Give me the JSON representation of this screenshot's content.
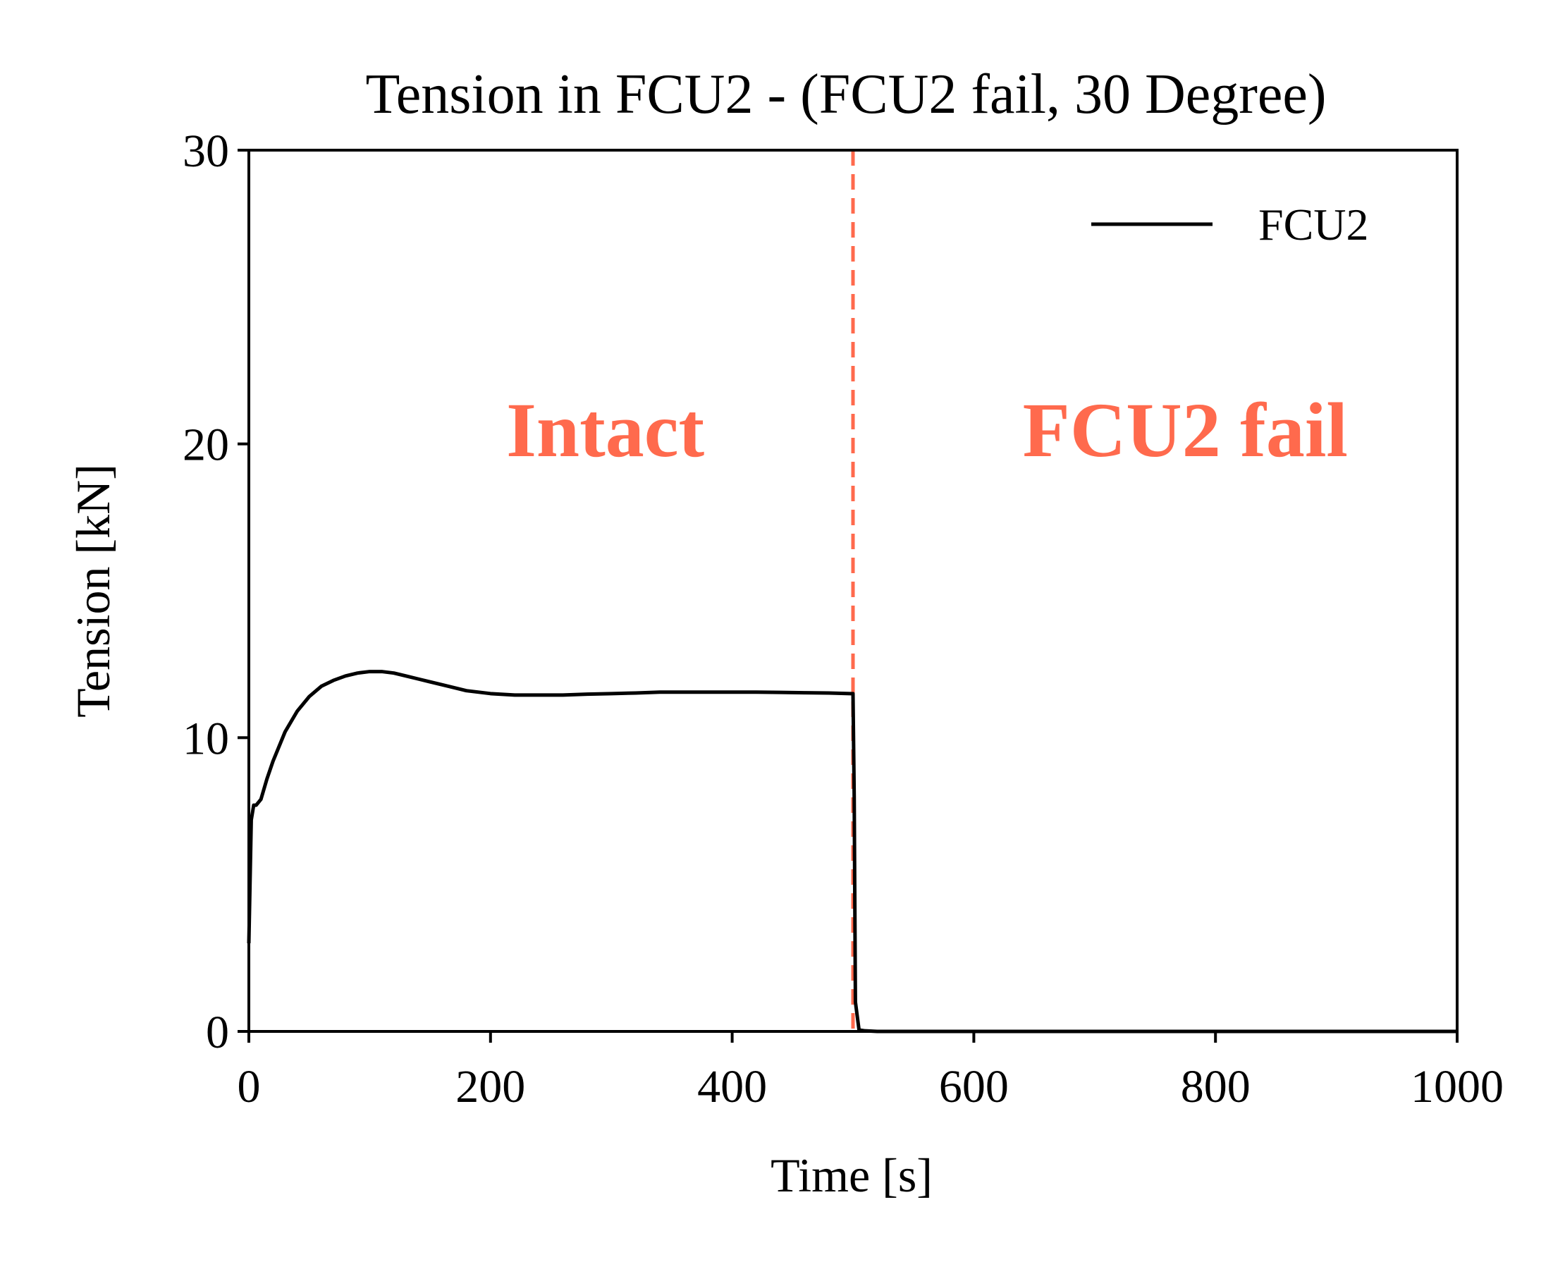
{
  "chart_data": {
    "type": "line",
    "title": "Tension in FCU2 - (FCU2 fail, 30 Degree)",
    "xlabel": "Time [s]",
    "ylabel": "Tension [kN]",
    "xlim": [
      0,
      1000
    ],
    "ylim": [
      0,
      30
    ],
    "xticks": [
      0,
      200,
      400,
      600,
      800,
      1000
    ],
    "yticks": [
      0,
      10,
      20,
      30
    ],
    "grid": false,
    "legend_position": "top-right",
    "series": [
      {
        "name": "FCU2",
        "color": "#000000",
        "x": [
          0,
          2,
          4,
          6,
          10,
          15,
          20,
          30,
          40,
          50,
          60,
          70,
          80,
          90,
          100,
          110,
          120,
          130,
          140,
          150,
          160,
          180,
          200,
          220,
          240,
          260,
          280,
          300,
          320,
          340,
          360,
          380,
          400,
          420,
          440,
          460,
          480,
          498,
          500,
          501,
          502,
          505,
          510,
          520,
          600,
          700,
          800,
          900,
          1000
        ],
        "y": [
          3.0,
          7.2,
          7.7,
          7.7,
          7.9,
          8.6,
          9.2,
          10.2,
          10.9,
          11.4,
          11.75,
          11.95,
          12.1,
          12.2,
          12.25,
          12.25,
          12.2,
          12.1,
          12.0,
          11.9,
          11.8,
          11.6,
          11.5,
          11.45,
          11.45,
          11.45,
          11.48,
          11.5,
          11.52,
          11.55,
          11.55,
          11.55,
          11.55,
          11.55,
          11.54,
          11.53,
          11.52,
          11.5,
          11.5,
          8.0,
          1.0,
          0.05,
          0.02,
          0.0,
          0.0,
          0.0,
          0.0,
          0.0,
          0.0
        ]
      }
    ],
    "annotations": [
      {
        "text": "Intact",
        "x": 295,
        "y": 20.5,
        "color": "#ff6a4d"
      },
      {
        "text": "FCU2 fail",
        "x": 775,
        "y": 20.5,
        "color": "#ff6a4d"
      }
    ],
    "vlines": [
      {
        "x": 500,
        "color": "#ff6a4d",
        "style": "dashed"
      }
    ]
  }
}
